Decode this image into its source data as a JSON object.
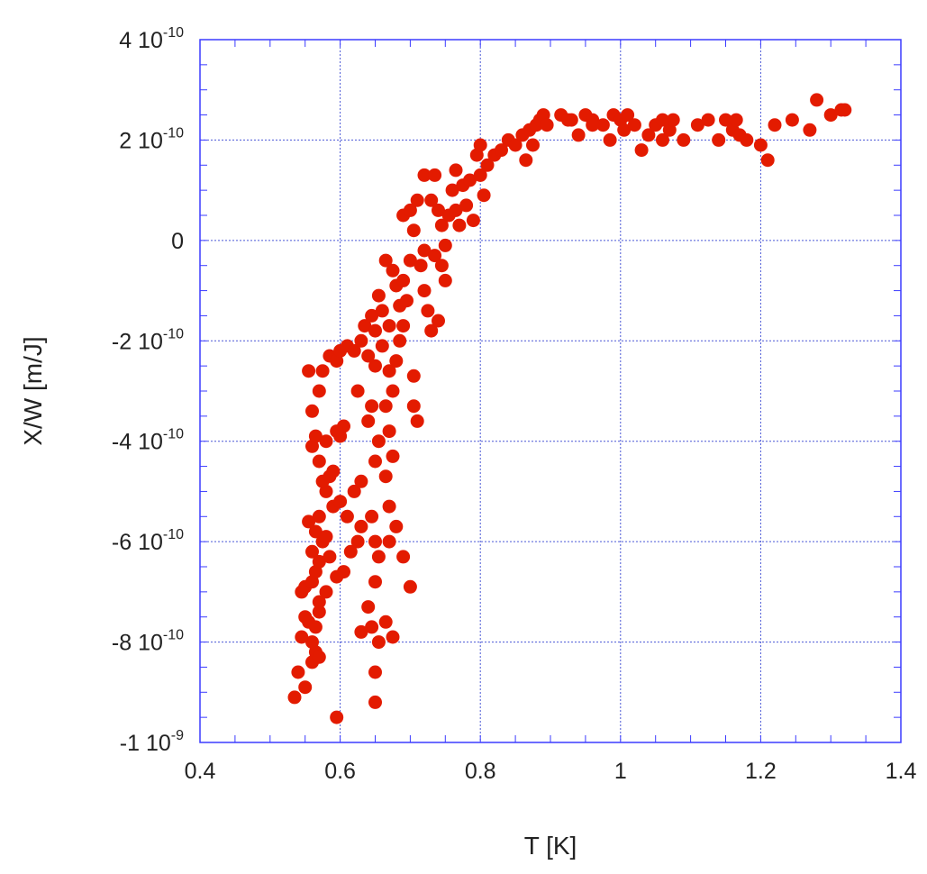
{
  "chart_data": {
    "type": "scatter",
    "title": "",
    "xlabel": "T [K]",
    "ylabel": "X/W [m/J]",
    "xlim": [
      0.4,
      1.4
    ],
    "ylim": [
      -1e-09,
      4e-10
    ],
    "grid": true,
    "x_ticks": [
      {
        "value": 0.4,
        "label": "0.4"
      },
      {
        "value": 0.6,
        "label": "0.6"
      },
      {
        "value": 0.8,
        "label": "0.8"
      },
      {
        "value": 1.0,
        "label": "1"
      },
      {
        "value": 1.2,
        "label": "1.2"
      },
      {
        "value": 1.4,
        "label": "1.4"
      }
    ],
    "y_ticks": [
      {
        "value": 4e-10,
        "mantissa": "4 10",
        "exp": "-10"
      },
      {
        "value": 2e-10,
        "mantissa": "2 10",
        "exp": "-10"
      },
      {
        "value": 0,
        "mantissa": "0",
        "exp": ""
      },
      {
        "value": -2e-10,
        "mantissa": "-2 10",
        "exp": "-10"
      },
      {
        "value": -4e-10,
        "mantissa": "-4 10",
        "exp": "-10"
      },
      {
        "value": -6e-10,
        "mantissa": "-6 10",
        "exp": "-10"
      },
      {
        "value": -8e-10,
        "mantissa": "-8 10",
        "exp": "-10"
      },
      {
        "value": -1e-09,
        "mantissa": "-1 10",
        "exp": "-9"
      }
    ],
    "colors": {
      "marker": "#e31b00",
      "frame": "#3b3bff",
      "grid": "#4a57d6"
    },
    "y_unit": 1e-10,
    "series": [
      {
        "points": [
          [
            0.535,
            -9.1
          ],
          [
            0.54,
            -8.6
          ],
          [
            0.55,
            -8.9
          ],
          [
            0.56,
            -8.4
          ],
          [
            0.565,
            -8.2
          ],
          [
            0.57,
            -8.3
          ],
          [
            0.56,
            -8.0
          ],
          [
            0.545,
            -7.9
          ],
          [
            0.55,
            -7.5
          ],
          [
            0.555,
            -7.6
          ],
          [
            0.565,
            -7.7
          ],
          [
            0.57,
            -7.4
          ],
          [
            0.545,
            -7.0
          ],
          [
            0.55,
            -6.9
          ],
          [
            0.56,
            -6.8
          ],
          [
            0.565,
            -6.6
          ],
          [
            0.57,
            -6.4
          ],
          [
            0.56,
            -6.2
          ],
          [
            0.575,
            -6.0
          ],
          [
            0.565,
            -5.8
          ],
          [
            0.555,
            -5.6
          ],
          [
            0.57,
            -5.5
          ],
          [
            0.58,
            -5.9
          ],
          [
            0.585,
            -6.3
          ],
          [
            0.59,
            -5.3
          ],
          [
            0.58,
            -5.0
          ],
          [
            0.575,
            -4.8
          ],
          [
            0.585,
            -4.7
          ],
          [
            0.57,
            -4.4
          ],
          [
            0.56,
            -4.1
          ],
          [
            0.565,
            -3.9
          ],
          [
            0.58,
            -4.0
          ],
          [
            0.56,
            -3.4
          ],
          [
            0.555,
            -2.6
          ],
          [
            0.575,
            -2.6
          ],
          [
            0.57,
            -3.0
          ],
          [
            0.585,
            -2.3
          ],
          [
            0.595,
            -2.4
          ],
          [
            0.6,
            -2.2
          ],
          [
            0.61,
            -2.1
          ],
          [
            0.605,
            -3.7
          ],
          [
            0.6,
            -3.9
          ],
          [
            0.595,
            -3.8
          ],
          [
            0.59,
            -4.6
          ],
          [
            0.6,
            -5.2
          ],
          [
            0.61,
            -5.5
          ],
          [
            0.605,
            -6.6
          ],
          [
            0.595,
            -6.7
          ],
          [
            0.58,
            -7.0
          ],
          [
            0.57,
            -7.2
          ],
          [
            0.595,
            -9.5
          ],
          [
            0.615,
            -6.2
          ],
          [
            0.625,
            -6.0
          ],
          [
            0.63,
            -5.7
          ],
          [
            0.62,
            -5.0
          ],
          [
            0.63,
            -4.8
          ],
          [
            0.625,
            -3.0
          ],
          [
            0.62,
            -2.2
          ],
          [
            0.63,
            -2.0
          ],
          [
            0.64,
            -2.3
          ],
          [
            0.635,
            -1.7
          ],
          [
            0.645,
            -1.5
          ],
          [
            0.65,
            -1.8
          ],
          [
            0.66,
            -1.4
          ],
          [
            0.655,
            -1.1
          ],
          [
            0.665,
            -0.4
          ],
          [
            0.675,
            -0.6
          ],
          [
            0.68,
            -0.9
          ],
          [
            0.685,
            -1.3
          ],
          [
            0.67,
            -1.7
          ],
          [
            0.66,
            -2.1
          ],
          [
            0.65,
            -2.5
          ],
          [
            0.645,
            -3.3
          ],
          [
            0.64,
            -3.6
          ],
          [
            0.655,
            -4.0
          ],
          [
            0.65,
            -4.4
          ],
          [
            0.645,
            -5.5
          ],
          [
            0.65,
            -6.0
          ],
          [
            0.655,
            -6.3
          ],
          [
            0.65,
            -6.8
          ],
          [
            0.64,
            -7.3
          ],
          [
            0.645,
            -7.7
          ],
          [
            0.63,
            -7.8
          ],
          [
            0.655,
            -8.0
          ],
          [
            0.65,
            -8.6
          ],
          [
            0.65,
            -9.2
          ],
          [
            0.665,
            -7.6
          ],
          [
            0.675,
            -7.9
          ],
          [
            0.67,
            -6.0
          ],
          [
            0.68,
            -5.7
          ],
          [
            0.67,
            -5.3
          ],
          [
            0.665,
            -4.7
          ],
          [
            0.675,
            -4.3
          ],
          [
            0.67,
            -3.8
          ],
          [
            0.665,
            -3.3
          ],
          [
            0.675,
            -3.0
          ],
          [
            0.67,
            -2.6
          ],
          [
            0.68,
            -2.4
          ],
          [
            0.685,
            -2.0
          ],
          [
            0.69,
            -1.7
          ],
          [
            0.695,
            -1.2
          ],
          [
            0.69,
            -0.8
          ],
          [
            0.7,
            -0.4
          ],
          [
            0.705,
            0.2
          ],
          [
            0.69,
            0.5
          ],
          [
            0.7,
            0.6
          ],
          [
            0.71,
            0.8
          ],
          [
            0.72,
            -0.2
          ],
          [
            0.715,
            -0.5
          ],
          [
            0.72,
            -1.0
          ],
          [
            0.725,
            -1.4
          ],
          [
            0.73,
            -1.8
          ],
          [
            0.74,
            -1.6
          ],
          [
            0.735,
            -0.3
          ],
          [
            0.745,
            -0.5
          ],
          [
            0.75,
            -0.8
          ],
          [
            0.69,
            -6.3
          ],
          [
            0.7,
            -6.9
          ],
          [
            0.705,
            -3.3
          ],
          [
            0.71,
            -3.6
          ],
          [
            0.705,
            -2.7
          ],
          [
            0.72,
            1.3
          ],
          [
            0.735,
            1.3
          ],
          [
            0.73,
            0.8
          ],
          [
            0.74,
            0.6
          ],
          [
            0.745,
            0.3
          ],
          [
            0.75,
            -0.1
          ],
          [
            0.755,
            0.5
          ],
          [
            0.76,
            1.0
          ],
          [
            0.765,
            0.6
          ],
          [
            0.77,
            0.3
          ],
          [
            0.765,
            1.4
          ],
          [
            0.775,
            1.1
          ],
          [
            0.78,
            0.7
          ],
          [
            0.79,
            0.4
          ],
          [
            0.785,
            1.2
          ],
          [
            0.795,
            1.7
          ],
          [
            0.8,
            1.3
          ],
          [
            0.805,
            0.9
          ],
          [
            0.8,
            1.9
          ],
          [
            0.81,
            1.5
          ],
          [
            0.82,
            1.7
          ],
          [
            0.83,
            1.8
          ],
          [
            0.84,
            2.0
          ],
          [
            0.85,
            1.9
          ],
          [
            0.86,
            2.1
          ],
          [
            0.865,
            1.6
          ],
          [
            0.87,
            2.2
          ],
          [
            0.875,
            1.9
          ],
          [
            0.88,
            2.3
          ],
          [
            0.885,
            2.4
          ],
          [
            0.89,
            2.5
          ],
          [
            0.915,
            2.5
          ],
          [
            0.93,
            2.4
          ],
          [
            0.94,
            2.1
          ],
          [
            0.95,
            2.5
          ],
          [
            0.96,
            2.4
          ],
          [
            0.975,
            2.3
          ],
          [
            0.985,
            2.0
          ],
          [
            0.99,
            2.5
          ],
          [
            1.0,
            2.4
          ],
          [
            1.005,
            2.2
          ],
          [
            1.01,
            2.5
          ],
          [
            1.02,
            2.3
          ],
          [
            1.03,
            1.8
          ],
          [
            1.04,
            2.1
          ],
          [
            1.05,
            2.3
          ],
          [
            1.06,
            2.0
          ],
          [
            1.07,
            2.2
          ],
          [
            1.075,
            2.4
          ],
          [
            1.09,
            2.0
          ],
          [
            1.11,
            2.3
          ],
          [
            1.125,
            2.4
          ],
          [
            1.14,
            2.0
          ],
          [
            1.15,
            2.4
          ],
          [
            1.16,
            2.2
          ],
          [
            1.17,
            2.1
          ],
          [
            1.18,
            2.0
          ],
          [
            1.2,
            1.9
          ],
          [
            1.21,
            1.6
          ],
          [
            1.22,
            2.3
          ],
          [
            1.245,
            2.4
          ],
          [
            1.27,
            2.2
          ],
          [
            1.28,
            2.8
          ],
          [
            1.3,
            2.5
          ],
          [
            1.315,
            2.6
          ],
          [
            1.32,
            2.6
          ],
          [
            1.165,
            2.4
          ],
          [
            1.06,
            2.4
          ],
          [
            0.96,
            2.3
          ],
          [
            0.925,
            2.4
          ],
          [
            0.895,
            2.3
          ]
        ]
      }
    ]
  }
}
